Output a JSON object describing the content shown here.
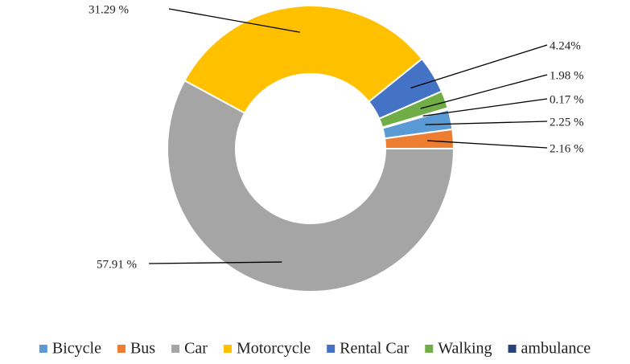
{
  "chart_data": {
    "type": "donut",
    "categories": [
      "Bicycle",
      "Bus",
      "Car",
      "Motorcycle",
      "Rental Car",
      "Walking",
      "ambulance"
    ],
    "values": [
      2.25,
      2.16,
      57.91,
      31.29,
      4.24,
      1.98,
      0.17
    ],
    "value_labels": [
      "2.25 %",
      "2.16 %",
      "57.91 %",
      "31.29 %",
      "4.24%",
      "1.98 %",
      "0.17 %"
    ],
    "colors": [
      "#5b9bd5",
      "#ed7d31",
      "#a5a5a5",
      "#ffc000",
      "#4472c4",
      "#70ad47",
      "#264478"
    ],
    "legend": "bottom"
  }
}
